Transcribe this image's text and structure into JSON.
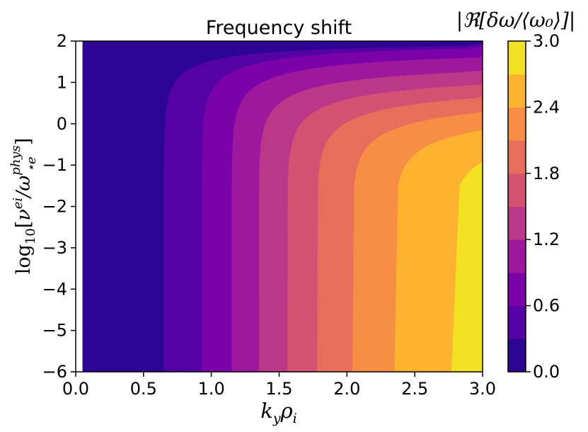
{
  "chart_data": {
    "type": "heatmap",
    "subtype": "filled-contour",
    "title": "Frequency shift",
    "colormap": "plasma",
    "x_axis": {
      "label_parts": {
        "main": "k",
        "sub1": "y",
        "main2": "ρ",
        "sub2": "i"
      },
      "range": [
        0.0,
        3.0
      ],
      "ticks": [
        0.0,
        0.5,
        1.0,
        1.5,
        2.0,
        2.5,
        3.0
      ],
      "tick_labels": [
        "0.0",
        "0.5",
        "1.0",
        "1.5",
        "2.0",
        "2.5",
        "3.0"
      ]
    },
    "y_axis": {
      "label_parts": {
        "pre": "log",
        "sub": "10",
        "nu": "ν",
        "nu_sup": "ei",
        "slash": "/ω",
        "omega_sup": "phys",
        "omega_sub": "⋆e"
      },
      "range": [
        -6,
        2
      ],
      "ticks": [
        -6,
        -5,
        -4,
        -3,
        -2,
        -1,
        0,
        1,
        2
      ],
      "tick_labels": [
        "−6",
        "−5",
        "−4",
        "−3",
        "−2",
        "−1",
        "0",
        "1",
        "2"
      ]
    },
    "colorbar": {
      "label": "|ℜ[δω/⟨ω₀⟩]|",
      "range": [
        0.0,
        3.0
      ],
      "levels": [
        0.0,
        0.3,
        0.6,
        0.9,
        1.2,
        1.5,
        1.8,
        2.1,
        2.4,
        2.7,
        3.0
      ],
      "level_colors": [
        "#2c0594",
        "#5502a4",
        "#7b02a8",
        "#9d189d",
        "#bb3787",
        "#d35171",
        "#e76e5b",
        "#f68e44",
        "#fdb32f",
        "#f3e224"
      ],
      "ticks": [
        0.0,
        0.6,
        1.2,
        1.8,
        2.4,
        3.0
      ],
      "tick_labels": [
        "0.0",
        "0.6",
        "1.2",
        "1.8",
        "2.4",
        "3.0"
      ]
    },
    "field_description": "value rises with k_y rho_i and is suppressed when log10(nu) > ~0; max ~3 near k_y rho_i = 3, low collisionality",
    "saturation_ky": [
      0.65,
      0.93,
      1.15,
      1.35,
      1.56,
      1.78,
      2.04,
      2.35,
      2.77
    ]
  }
}
